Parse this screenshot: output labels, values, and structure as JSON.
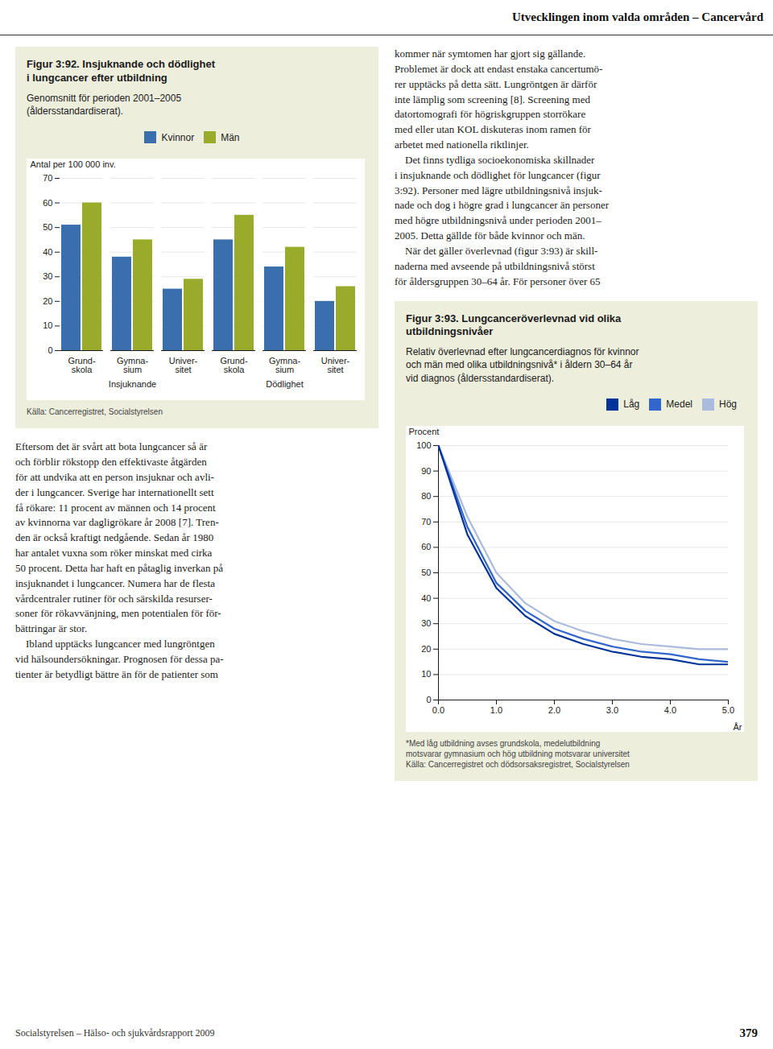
{
  "title": "Utvecklingen inom valda områden – Cancervård",
  "annotations": [
    "Socialstyrelsen – Hälso- och sjukvårdsrapport 2009",
    "379",
    "Eftersom det är svårt att bota lungcancer så är\noch förblir rökstopp den effektivaste åtgärden\nför att undvika att en person insjuknar och avli-\nder i lungcancer. Sverige har internationellt sett\nfå rökare: 11 procent av männen och 14 procent\nav kvinnorna var dagligrökare år 2008 [7]. Tren-\nden är också kraftigt nedgående. Sedan år 1980\nhar antalet vuxna som röker minskat med cirka\n50 procent. Detta har haft en påtaglig inverkan på\ninsjuknandet i lungcancer. Numera har de flesta\nvårdcentraler rutiner för och särskilda resurser-\nsoner för rökavvänjning, men potentialen för för-\nbättringar är stor.\n    Ibland upptäcks lungcancer med lungröntgen\nvid hälsoundersökningar. Prognosen för dessa pa-\ntienter är betydligt bättre än för de patienter som",
    "kommer när symtomen har gjort sig gällande.\nProblemet är dock att endast enstaka cancertumö-\nrer upptäcks på detta sätt. Lungröntgen är därför\ninte lämplig som screening [8]. Screening med\ndatortomografi för högriskgruppen storrökare\nmed eller utan KOL diskuteras inom ramen för\narbetet med nationella riktlinjer.\n    Det finns tydliga socioekonomiska skillnader\ni insjuknande och dödlighet för lungcancer (figur\n3:92). Personer med lägre utbildningsnivå insjuk-\nnade och dog i högre grad i lungcancer än personer\nmed högre utbildningsnivå under perioden 2001–\n2005. Detta gällde för både kvinnor och män.\n    När det gäller överlevnad (figur 3:93) är skill-\nnaderna med avseende på utbildningsnivå störst\nför åldersgruppen 30–64 år. För personer över 65"
  ],
  "chart_data": [
    {
      "type": "bar",
      "title": "Figur 3:92. Insjuknande och dödlighet\ni lungcancer efter utbildning",
      "subtitle": "Genomsnitt för perioden 2001–2005\n(åldersstandardiserat).",
      "ylabel": "Antal per 100 000 inv.",
      "categories": [
        "Grund-\nskola",
        "Gymna-\nsium",
        "Univer-\nsitet",
        "Grund-\nskola",
        "Gymna-\nsium",
        "Univer-\nsitet"
      ],
      "group_labels": [
        "Insjuknande",
        "Dödlighet"
      ],
      "series": [
        {
          "name": "Kvinnor",
          "color": "#3a6fae",
          "values": [
            51,
            38,
            25,
            45,
            34,
            20
          ]
        },
        {
          "name": "Män",
          "color": "#9aaa2a",
          "values": [
            60,
            45,
            29,
            55,
            42,
            26
          ]
        }
      ],
      "ylim": [
        0,
        70
      ],
      "yticks": [
        0,
        10,
        20,
        30,
        40,
        50,
        60,
        70
      ],
      "grid": true,
      "legend": "top",
      "annotations": [
        "Källa: Cancerregistret, Socialstyrelsen"
      ]
    },
    {
      "type": "line",
      "title": "Figur 3:93. Lungcanceröverlevnad vid olika\nutbildningsnivåer",
      "subtitle": "Relativ överlevnad efter lungcancerdiagnos för kvinnor\noch män med olika utbildningsnivå* i åldern 30–64 år\nvid diagnos (åldersstandardiserat).",
      "xlabel": "År",
      "ylabel": "Procent",
      "x": [
        0,
        0.5,
        1,
        1.5,
        2,
        2.5,
        3,
        3.5,
        4,
        4.5,
        5
      ],
      "series": [
        {
          "name": "Låg",
          "color": "#003399",
          "values": [
            100,
            65,
            44,
            33,
            26,
            22,
            19,
            17,
            16,
            14,
            14
          ]
        },
        {
          "name": "Medel",
          "color": "#3366cc",
          "values": [
            100,
            68,
            46,
            35,
            28,
            24,
            21,
            19,
            18,
            16,
            15
          ]
        },
        {
          "name": "Hög",
          "color": "#aabbdd",
          "values": [
            100,
            72,
            50,
            38,
            31,
            27,
            24,
            22,
            21,
            20,
            20
          ]
        }
      ],
      "xlim": [
        0,
        5
      ],
      "xticks": [
        0,
        1,
        2,
        3,
        4,
        5
      ],
      "ylim": [
        0,
        100
      ],
      "yticks": [
        0,
        10,
        20,
        30,
        40,
        50,
        60,
        70,
        80,
        90,
        100
      ],
      "grid": true,
      "legend": "top-right",
      "annotations": [
        "*Med låg utbildning avses grundskola, medelutbildning\nmotsvarar gymnasium och hög utbildning motsvarar universitet\nKälla: Cancerregistret och dödsorsaksregistret, Socialstyrelsen"
      ]
    }
  ]
}
